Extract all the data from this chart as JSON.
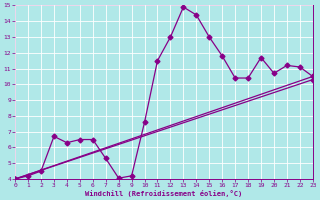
{
  "xlabel": "Windchill (Refroidissement éolien,°C)",
  "bg_color": "#b0e8e8",
  "line_color": "#880088",
  "grid_color": "#ffffff",
  "xlim": [
    0,
    23
  ],
  "ylim": [
    4,
    15
  ],
  "xticks": [
    0,
    1,
    2,
    3,
    4,
    5,
    6,
    7,
    8,
    9,
    10,
    11,
    12,
    13,
    14,
    15,
    16,
    17,
    18,
    19,
    20,
    21,
    22,
    23
  ],
  "yticks": [
    4,
    5,
    6,
    7,
    8,
    9,
    10,
    11,
    12,
    13,
    14,
    15
  ],
  "trend1_x": [
    0,
    23
  ],
  "trend1_y": [
    4.0,
    10.3
  ],
  "trend2_x": [
    0,
    23
  ],
  "trend2_y": [
    4.0,
    10.5
  ],
  "data_x": [
    0,
    1,
    2,
    3,
    4,
    5,
    6,
    7,
    8,
    9,
    10,
    11,
    12,
    13,
    14,
    15,
    16,
    17,
    18,
    19,
    20,
    21,
    22,
    23
  ],
  "data_y": [
    4.0,
    4.2,
    4.5,
    6.7,
    6.3,
    6.5,
    6.5,
    5.3,
    4.05,
    4.2,
    7.6,
    11.5,
    13.0,
    14.9,
    14.4,
    13.0,
    11.8,
    10.4,
    10.4,
    11.7,
    10.7,
    11.2,
    11.1,
    10.5
  ],
  "markersize": 2.5,
  "linewidth": 0.9
}
